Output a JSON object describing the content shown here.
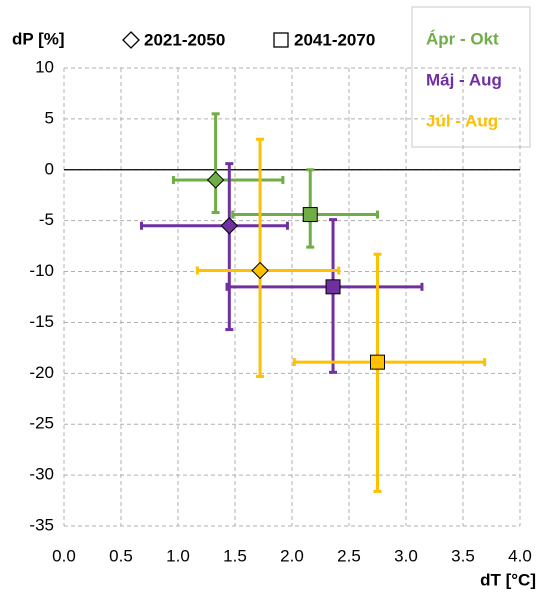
{
  "chart_data": {
    "type": "errorbar-scatter",
    "y_label": "dP [%]",
    "x_label": "dT [°C]",
    "markers": [
      {
        "name": "2021-2050",
        "shape": "diamond"
      },
      {
        "name": "2041-2070",
        "shape": "square"
      }
    ],
    "series": [
      {
        "name": "Ápr - Okt",
        "color": "#70ad47",
        "points": [
          {
            "x": 1.33,
            "y": -1,
            "xmin": 0.96,
            "xmax": 1.92,
            "ymin": -4.2,
            "ymax": 5.5
          },
          {
            "x": 2.16,
            "y": -4.4,
            "xmin": 1.48,
            "xmax": 2.75,
            "ymin": -7.6,
            "ymax": 0
          }
        ]
      },
      {
        "name": "Máj - Aug",
        "color": "#7030a0",
        "points": [
          {
            "x": 1.45,
            "y": -5.5,
            "xmin": 0.68,
            "xmax": 1.96,
            "ymin": -15.7,
            "ymax": 0.6
          },
          {
            "x": 2.36,
            "y": -11.5,
            "xmin": 1.43,
            "xmax": 3.14,
            "ymin": -19.9,
            "ymax": -4.9
          }
        ]
      },
      {
        "name": "Júl - Aug",
        "color": "#ffc000",
        "points": [
          {
            "x": 1.72,
            "y": -9.9,
            "xmin": 1.17,
            "xmax": 2.41,
            "ymin": -20.3,
            "ymax": 3
          },
          {
            "x": 2.75,
            "y": -18.9,
            "xmin": 2.02,
            "xmax": 3.69,
            "ymin": -31.6,
            "ymax": -8.3
          }
        ]
      }
    ],
    "xlim": [
      0,
      4
    ],
    "ylim": [
      -35,
      10
    ],
    "xticks": [
      {
        "value": 0,
        "label": "0.0"
      },
      0.5,
      {
        "value": 1,
        "label": "1.0"
      },
      1.5,
      {
        "value": 2,
        "label": "2.0"
      },
      2.5,
      {
        "value": 3,
        "label": "3.0"
      },
      3.5,
      {
        "value": 4,
        "label": "4.0"
      }
    ],
    "yticks": [
      -35,
      -30,
      -25,
      -20,
      -15,
      -10,
      -5,
      0,
      5,
      10
    ],
    "grid": true
  }
}
